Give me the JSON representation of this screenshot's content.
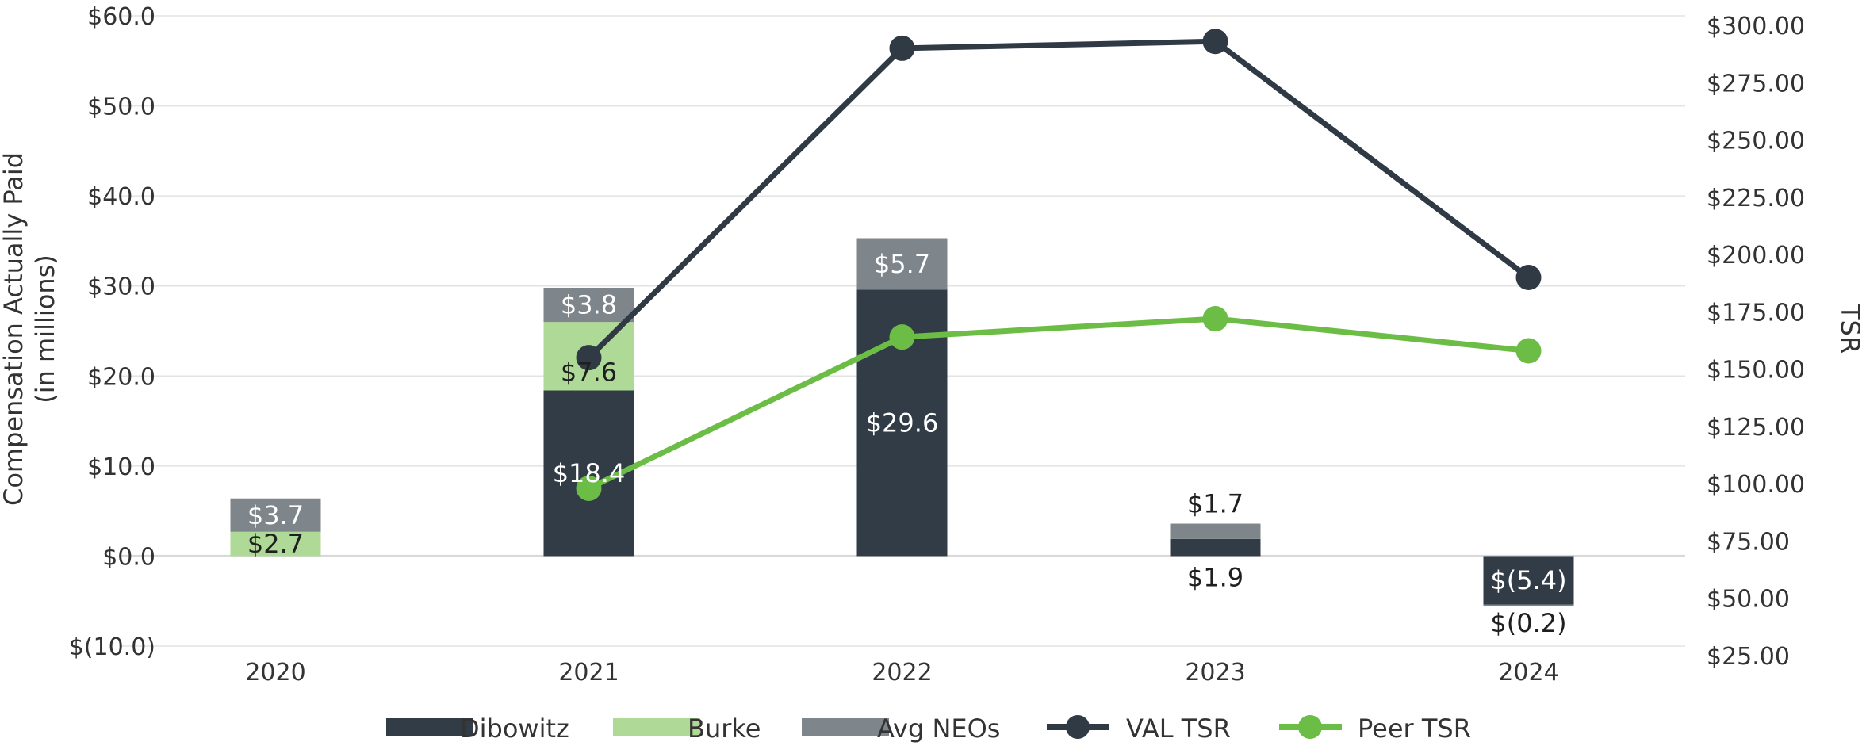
{
  "chart_data": {
    "type": "bar",
    "categories": [
      "2020",
      "2021",
      "2022",
      "2023",
      "2024"
    ],
    "left_axis": {
      "title_line1": "Compensation Actually Paid",
      "title_line2": "(in millions)",
      "ylim": [
        -10,
        60
      ],
      "ticks": [
        "$60.0",
        "$50.0",
        "$40.0",
        "$30.0",
        "$20.0",
        "$10.0",
        "$0.0",
        "$(10.0)"
      ],
      "tick_values": [
        60,
        50,
        40,
        30,
        20,
        10,
        0,
        -10
      ]
    },
    "right_axis": {
      "title": "TSR",
      "ylim": [
        25,
        300
      ],
      "ticks": [
        "$300.00",
        "$275.00",
        "$250.00",
        "$225.00",
        "$200.00",
        "$175.00",
        "$150.00",
        "$125.00",
        "$100.00",
        "$75.00",
        "$50.00",
        "$25.00"
      ],
      "tick_values": [
        300,
        275,
        250,
        225,
        200,
        175,
        150,
        125,
        100,
        75,
        50,
        25
      ]
    },
    "bar_series": [
      {
        "name": "Dibowitz",
        "color": "#313c47",
        "values": [
          null,
          18.4,
          29.6,
          1.9,
          -5.4
        ],
        "labels": [
          "",
          "$18.4",
          "$29.6",
          "$1.9",
          "$(5.4)"
        ]
      },
      {
        "name": "Burke",
        "color": "#aed996",
        "values": [
          2.7,
          7.6,
          null,
          null,
          null
        ],
        "labels": [
          "$2.7",
          "$7.6",
          "",
          "",
          ""
        ]
      },
      {
        "name": "Avg NEOs",
        "color": "#7e858b",
        "values": [
          3.7,
          3.8,
          5.7,
          1.7,
          -0.2
        ],
        "labels": [
          "$3.7",
          "$3.8",
          "$5.7",
          "$1.7",
          "$(0.2)"
        ]
      }
    ],
    "line_series": [
      {
        "name": "VAL TSR",
        "color": "#2f3a45",
        "values": [
          null,
          155,
          290,
          293,
          190
        ]
      },
      {
        "name": "Peer TSR",
        "color": "#6cbd45",
        "values": [
          null,
          98,
          164,
          172,
          158
        ]
      }
    ],
    "legend": [
      "Dibowitz",
      "Burke",
      "Avg NEOs",
      "VAL TSR",
      "Peer TSR"
    ],
    "legend_position": "bottom",
    "grid": true
  }
}
